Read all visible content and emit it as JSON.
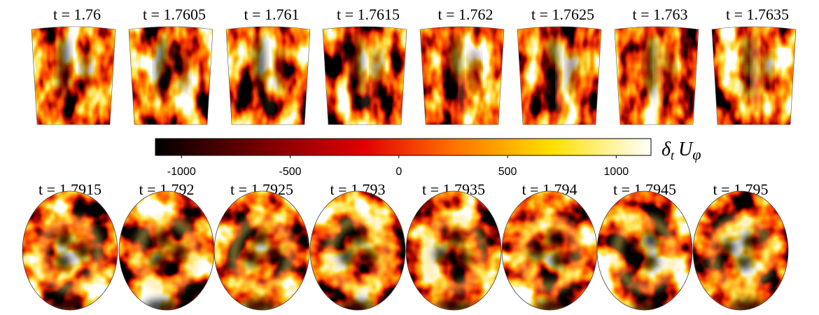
{
  "top_row": {
    "labels": [
      "t = 1.76",
      "t = 1.7605",
      "t = 1.761",
      "t = 1.7615",
      "t = 1.762",
      "t = 1.7625",
      "t = 1.763",
      "t = 1.7635"
    ]
  },
  "bottom_row": {
    "labels": [
      "t = 1.7915",
      "t = 1.792",
      "t = 1.7925",
      "t = 1.793",
      "t = 1.7935",
      "t = 1.794",
      "t = 1.7945",
      "t = 1.795"
    ]
  },
  "colorbar": {
    "lim": [
      -1120,
      1160
    ],
    "ticks": [
      -1000,
      -500,
      0,
      500,
      1000
    ],
    "label_parts": {
      "operator": "δ",
      "subscript": "t",
      "field": "U",
      "component": "φ"
    }
  }
}
